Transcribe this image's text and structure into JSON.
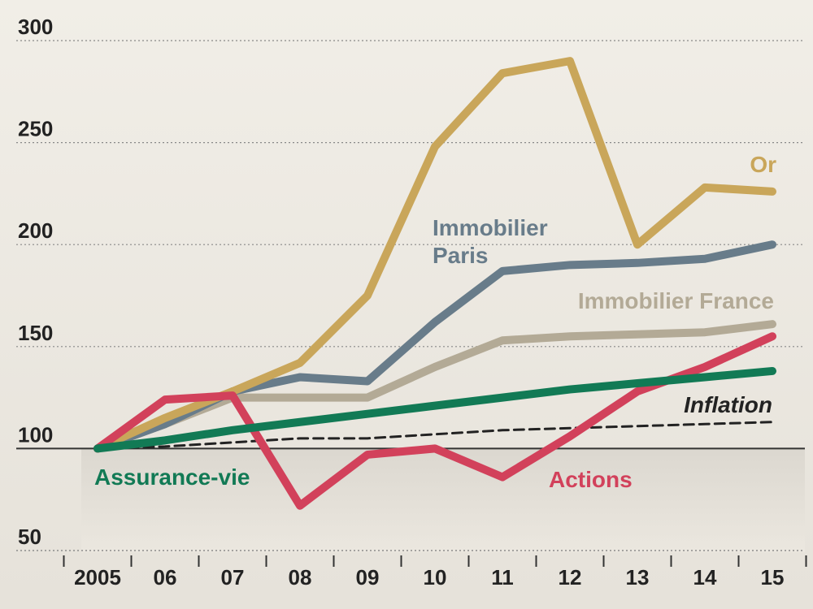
{
  "chart_data": {
    "type": "line",
    "title": "",
    "xlabel": "",
    "ylabel": "",
    "categories": [
      "2005",
      "06",
      "07",
      "08",
      "09",
      "10",
      "11",
      "12",
      "13",
      "14",
      "15"
    ],
    "ylim": [
      50,
      300
    ],
    "yticks": [
      300,
      250,
      200,
      150,
      100,
      50
    ],
    "grid": true,
    "baseline": 100,
    "series": [
      {
        "name": "Or",
        "color": "#c9a65a",
        "dashed": false,
        "values": [
          100,
          115,
          128,
          142,
          175,
          248,
          284,
          290,
          200,
          228,
          226
        ]
      },
      {
        "name": "Immobilier Paris",
        "color": "#687c8a",
        "dashed": false,
        "values": [
          100,
          112,
          128,
          135,
          133,
          162,
          187,
          190,
          191,
          193,
          200
        ]
      },
      {
        "name": "Immobilier France",
        "color": "#b3aa96",
        "dashed": false,
        "values": [
          100,
          112,
          125,
          125,
          125,
          140,
          153,
          155,
          156,
          157,
          161
        ]
      },
      {
        "name": "Inflation",
        "color": "#222222",
        "dashed": true,
        "values": [
          100,
          101,
          103,
          105,
          105,
          107,
          109,
          110,
          111,
          112,
          113
        ]
      },
      {
        "name": "Assurance-vie",
        "color": "#127a55",
        "dashed": false,
        "values": [
          100,
          104,
          109,
          113,
          117,
          121,
          125,
          129,
          132,
          135,
          138
        ]
      },
      {
        "name": "Actions",
        "color": "#d2415b",
        "dashed": false,
        "values": [
          100,
          124,
          126,
          72,
          97,
          100,
          86,
          106,
          128,
          140,
          155
        ]
      }
    ]
  }
}
